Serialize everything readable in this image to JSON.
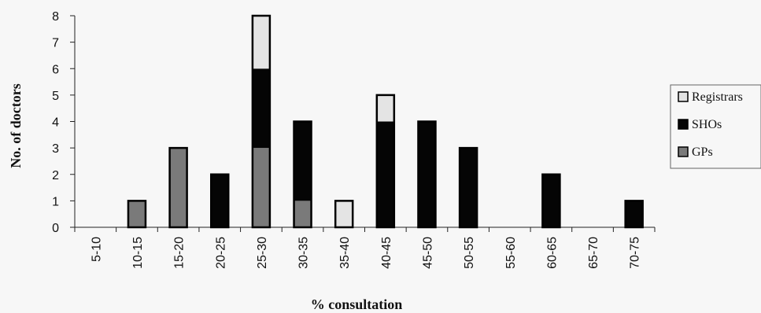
{
  "chart_data": {
    "type": "bar",
    "stacked": true,
    "categories": [
      "5-10",
      "10-15",
      "15-20",
      "20-25",
      "25-30",
      "30-35",
      "35-40",
      "40-45",
      "45-50",
      "50-55",
      "55-60",
      "60-65",
      "65-70",
      "70-75"
    ],
    "series": [
      {
        "name": "GPs",
        "color": "#7a7a7a",
        "values": [
          0,
          1,
          3,
          0,
          3,
          1,
          0,
          0,
          0,
          0,
          0,
          0,
          0,
          0
        ]
      },
      {
        "name": "SHOs",
        "color": "#050505",
        "values": [
          0,
          0,
          0,
          2,
          3,
          3,
          0,
          4,
          4,
          3,
          0,
          2,
          0,
          1
        ]
      },
      {
        "name": "Registrars",
        "color": "#e4e4e4",
        "values": [
          0,
          0,
          0,
          0,
          2,
          0,
          1,
          1,
          0,
          0,
          0,
          0,
          0,
          0
        ]
      }
    ],
    "legend_order": [
      "Registrars",
      "SHOs",
      "GPs"
    ],
    "title": "",
    "xlabel": "% consultation",
    "ylabel": "No. of doctors",
    "ylim": [
      0,
      8
    ],
    "yticks": [
      0,
      1,
      2,
      3,
      4,
      5,
      6,
      7,
      8
    ],
    "grid": false,
    "legend_position": "right"
  }
}
